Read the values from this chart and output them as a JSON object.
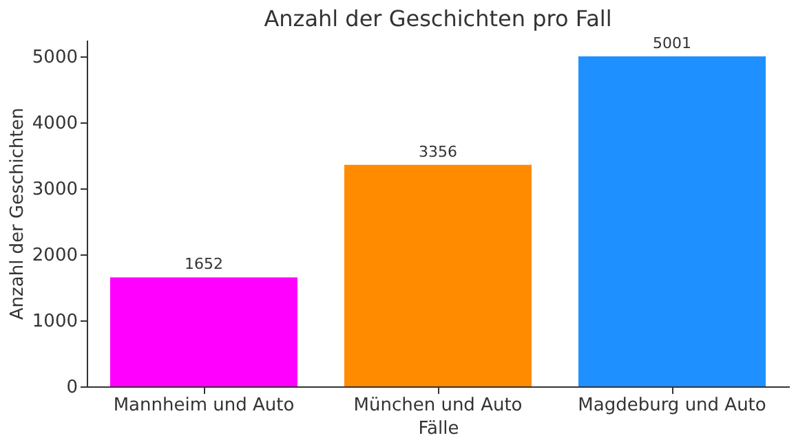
{
  "chart_data": {
    "type": "bar",
    "title": "Anzahl der Geschichten pro Fall",
    "xlabel": "Fälle",
    "ylabel": "Anzahl der Geschichten",
    "categories": [
      "Mannheim und Auto",
      "München und Auto",
      "Magdeburg und Auto"
    ],
    "values": [
      1652,
      3356,
      5001
    ],
    "colors": [
      "#ff00ff",
      "#ff8c00",
      "#1e90ff"
    ],
    "ylim": [
      0,
      5250
    ],
    "yticks": [
      0,
      1000,
      2000,
      3000,
      4000,
      5000
    ],
    "grid": false,
    "data_labels": true
  }
}
